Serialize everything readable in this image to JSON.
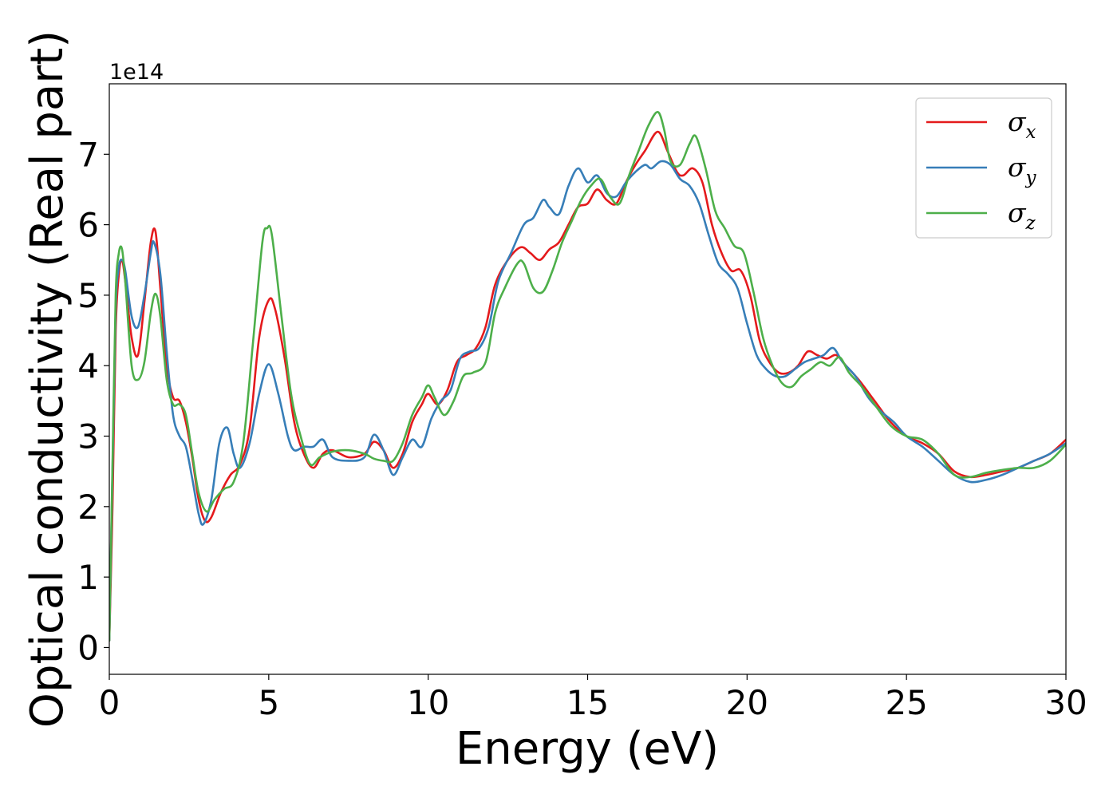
{
  "chart_data": {
    "type": "line",
    "xlabel": "Energy (eV)",
    "ylabel": "Optical conductivity (Real part)",
    "y_offset_label": "1e14",
    "xlim": [
      0,
      30
    ],
    "ylim": [
      -0.38,
      8.0
    ],
    "xticks": [
      0,
      5,
      10,
      15,
      20,
      25,
      30
    ],
    "yticks": [
      0,
      1,
      2,
      3,
      4,
      5,
      6,
      7
    ],
    "grid": false,
    "legend_position": "top-right",
    "series": [
      {
        "name": "σx",
        "legend_base": "σ",
        "legend_sub": "x",
        "color": "#e41a1c",
        "x": [
          0,
          0.1,
          0.2,
          0.3,
          0.4,
          0.5,
          0.7,
          0.9,
          1.1,
          1.3,
          1.45,
          1.6,
          1.8,
          2.0,
          2.2,
          2.4,
          2.6,
          2.8,
          3.0,
          3.2,
          3.5,
          3.8,
          4.1,
          4.4,
          4.7,
          5.0,
          5.2,
          5.5,
          5.8,
          6.1,
          6.4,
          6.7,
          7.0,
          7.5,
          8.0,
          8.3,
          8.6,
          8.9,
          9.2,
          9.5,
          9.8,
          10.0,
          10.3,
          10.6,
          10.9,
          11.2,
          11.5,
          11.8,
          12.1,
          12.5,
          12.9,
          13.2,
          13.5,
          13.8,
          14.1,
          14.4,
          14.7,
          15.0,
          15.3,
          15.6,
          15.9,
          16.2,
          16.5,
          16.8,
          17.2,
          17.5,
          17.8,
          18.0,
          18.3,
          18.6,
          18.9,
          19.2,
          19.5,
          19.8,
          20.1,
          20.4,
          20.7,
          21.0,
          21.3,
          21.6,
          21.9,
          22.2,
          22.5,
          22.8,
          23.1,
          23.5,
          24.0,
          24.5,
          25.0,
          25.5,
          26.0,
          26.5,
          27.0,
          27.5,
          28.0,
          28.5,
          29.0,
          29.5,
          30.0
        ],
        "values": [
          0.1,
          2.0,
          4.5,
          5.3,
          5.5,
          5.2,
          4.4,
          4.15,
          4.9,
          5.75,
          5.9,
          5.1,
          4.0,
          3.55,
          3.5,
          3.2,
          2.7,
          2.1,
          1.8,
          1.85,
          2.2,
          2.45,
          2.6,
          3.1,
          4.4,
          4.93,
          4.8,
          4.1,
          3.2,
          2.75,
          2.55,
          2.75,
          2.8,
          2.7,
          2.75,
          2.92,
          2.8,
          2.55,
          2.75,
          3.2,
          3.45,
          3.6,
          3.45,
          3.65,
          4.05,
          4.15,
          4.25,
          4.55,
          5.15,
          5.5,
          5.68,
          5.6,
          5.5,
          5.65,
          5.75,
          6.0,
          6.25,
          6.3,
          6.5,
          6.35,
          6.3,
          6.6,
          6.85,
          7.05,
          7.32,
          7.05,
          6.75,
          6.7,
          6.8,
          6.6,
          6.0,
          5.6,
          5.35,
          5.35,
          5.0,
          4.35,
          4.05,
          3.9,
          3.9,
          4.0,
          4.2,
          4.15,
          4.1,
          4.15,
          4.0,
          3.8,
          3.5,
          3.2,
          3.0,
          2.9,
          2.75,
          2.5,
          2.42,
          2.45,
          2.5,
          2.55,
          2.65,
          2.75,
          2.95
        ]
      },
      {
        "name": "σy",
        "legend_base": "σ",
        "legend_sub": "y",
        "color": "#377eb8",
        "x": [
          0,
          0.1,
          0.2,
          0.3,
          0.4,
          0.5,
          0.7,
          0.9,
          1.1,
          1.3,
          1.4,
          1.6,
          1.8,
          2.0,
          2.2,
          2.4,
          2.6,
          2.8,
          2.95,
          3.2,
          3.45,
          3.7,
          3.9,
          4.1,
          4.4,
          4.7,
          5.0,
          5.3,
          5.6,
          5.8,
          6.1,
          6.4,
          6.7,
          7.0,
          7.5,
          8.0,
          8.3,
          8.6,
          8.9,
          9.2,
          9.5,
          9.8,
          10.1,
          10.4,
          10.7,
          11.0,
          11.3,
          11.6,
          11.9,
          12.2,
          12.6,
          13.0,
          13.3,
          13.6,
          13.8,
          14.1,
          14.4,
          14.7,
          15.0,
          15.3,
          15.6,
          15.9,
          16.2,
          16.5,
          16.8,
          17.0,
          17.3,
          17.6,
          17.9,
          18.2,
          18.5,
          18.8,
          19.1,
          19.4,
          19.7,
          20.0,
          20.3,
          20.6,
          20.9,
          21.2,
          21.5,
          21.8,
          22.1,
          22.4,
          22.7,
          23.0,
          23.4,
          23.8,
          24.2,
          24.6,
          25.0,
          25.5,
          26.0,
          26.5,
          27.0,
          27.5,
          28.0,
          28.5,
          29.0,
          29.5,
          30.0
        ],
        "values": [
          0.1,
          2.5,
          4.8,
          5.4,
          5.5,
          5.35,
          4.7,
          4.55,
          5.0,
          5.6,
          5.75,
          5.3,
          4.2,
          3.3,
          3.0,
          2.85,
          2.4,
          1.9,
          1.75,
          2.1,
          2.9,
          3.12,
          2.75,
          2.55,
          2.9,
          3.6,
          4.02,
          3.6,
          3.0,
          2.8,
          2.85,
          2.85,
          2.95,
          2.7,
          2.65,
          2.7,
          3.02,
          2.8,
          2.45,
          2.7,
          2.95,
          2.85,
          3.25,
          3.5,
          3.65,
          4.1,
          4.2,
          4.25,
          4.55,
          5.2,
          5.6,
          6.0,
          6.1,
          6.35,
          6.25,
          6.15,
          6.55,
          6.8,
          6.6,
          6.7,
          6.45,
          6.4,
          6.6,
          6.75,
          6.85,
          6.8,
          6.9,
          6.85,
          6.65,
          6.55,
          6.3,
          5.85,
          5.45,
          5.3,
          5.1,
          4.6,
          4.15,
          3.95,
          3.85,
          3.85,
          3.95,
          4.05,
          4.1,
          4.15,
          4.25,
          4.05,
          3.85,
          3.55,
          3.35,
          3.2,
          3.0,
          2.85,
          2.65,
          2.45,
          2.35,
          2.38,
          2.45,
          2.55,
          2.65,
          2.75,
          2.9
        ]
      },
      {
        "name": "σz",
        "legend_base": "σ",
        "legend_sub": "z",
        "color": "#4daf4a",
        "x": [
          0,
          0.1,
          0.2,
          0.3,
          0.4,
          0.5,
          0.7,
          0.9,
          1.1,
          1.3,
          1.45,
          1.6,
          1.8,
          2.0,
          2.2,
          2.4,
          2.6,
          2.8,
          3.05,
          3.3,
          3.6,
          3.9,
          4.2,
          4.5,
          4.8,
          4.95,
          5.1,
          5.4,
          5.7,
          6.0,
          6.3,
          6.6,
          7.0,
          7.5,
          8.0,
          8.3,
          8.6,
          8.9,
          9.2,
          9.5,
          9.8,
          10.0,
          10.2,
          10.5,
          10.8,
          11.1,
          11.4,
          11.8,
          12.1,
          12.4,
          12.8,
          13.0,
          13.3,
          13.6,
          13.9,
          14.2,
          14.5,
          14.8,
          15.1,
          15.4,
          15.7,
          16.0,
          16.3,
          16.6,
          16.9,
          17.2,
          17.4,
          17.6,
          17.9,
          18.2,
          18.4,
          18.7,
          19.0,
          19.3,
          19.6,
          19.9,
          20.2,
          20.5,
          20.8,
          21.1,
          21.4,
          21.7,
          22.0,
          22.3,
          22.6,
          22.9,
          23.2,
          23.6,
          24.0,
          24.5,
          25.0,
          25.5,
          26.0,
          26.5,
          27.0,
          27.5,
          28.0,
          28.5,
          29.0,
          29.5,
          30.0
        ],
        "values": [
          0.1,
          2.6,
          5.0,
          5.6,
          5.65,
          5.2,
          4.0,
          3.8,
          4.05,
          4.75,
          5.02,
          4.7,
          3.8,
          3.45,
          3.45,
          3.3,
          2.75,
          2.2,
          1.93,
          2.1,
          2.25,
          2.35,
          2.9,
          4.3,
          5.75,
          5.95,
          5.85,
          4.7,
          3.6,
          3.0,
          2.6,
          2.7,
          2.78,
          2.8,
          2.75,
          2.68,
          2.65,
          2.65,
          2.9,
          3.3,
          3.55,
          3.72,
          3.55,
          3.3,
          3.5,
          3.85,
          3.9,
          4.05,
          4.75,
          5.1,
          5.45,
          5.45,
          5.1,
          5.05,
          5.35,
          5.75,
          6.05,
          6.35,
          6.55,
          6.65,
          6.4,
          6.3,
          6.7,
          7.05,
          7.4,
          7.6,
          7.35,
          6.9,
          6.85,
          7.15,
          7.25,
          6.8,
          6.2,
          5.95,
          5.7,
          5.6,
          5.05,
          4.4,
          4.0,
          3.75,
          3.7,
          3.85,
          3.95,
          4.05,
          4.0,
          4.12,
          3.9,
          3.7,
          3.45,
          3.15,
          3.0,
          2.95,
          2.75,
          2.45,
          2.42,
          2.48,
          2.52,
          2.55,
          2.55,
          2.65,
          2.88
        ]
      }
    ]
  }
}
